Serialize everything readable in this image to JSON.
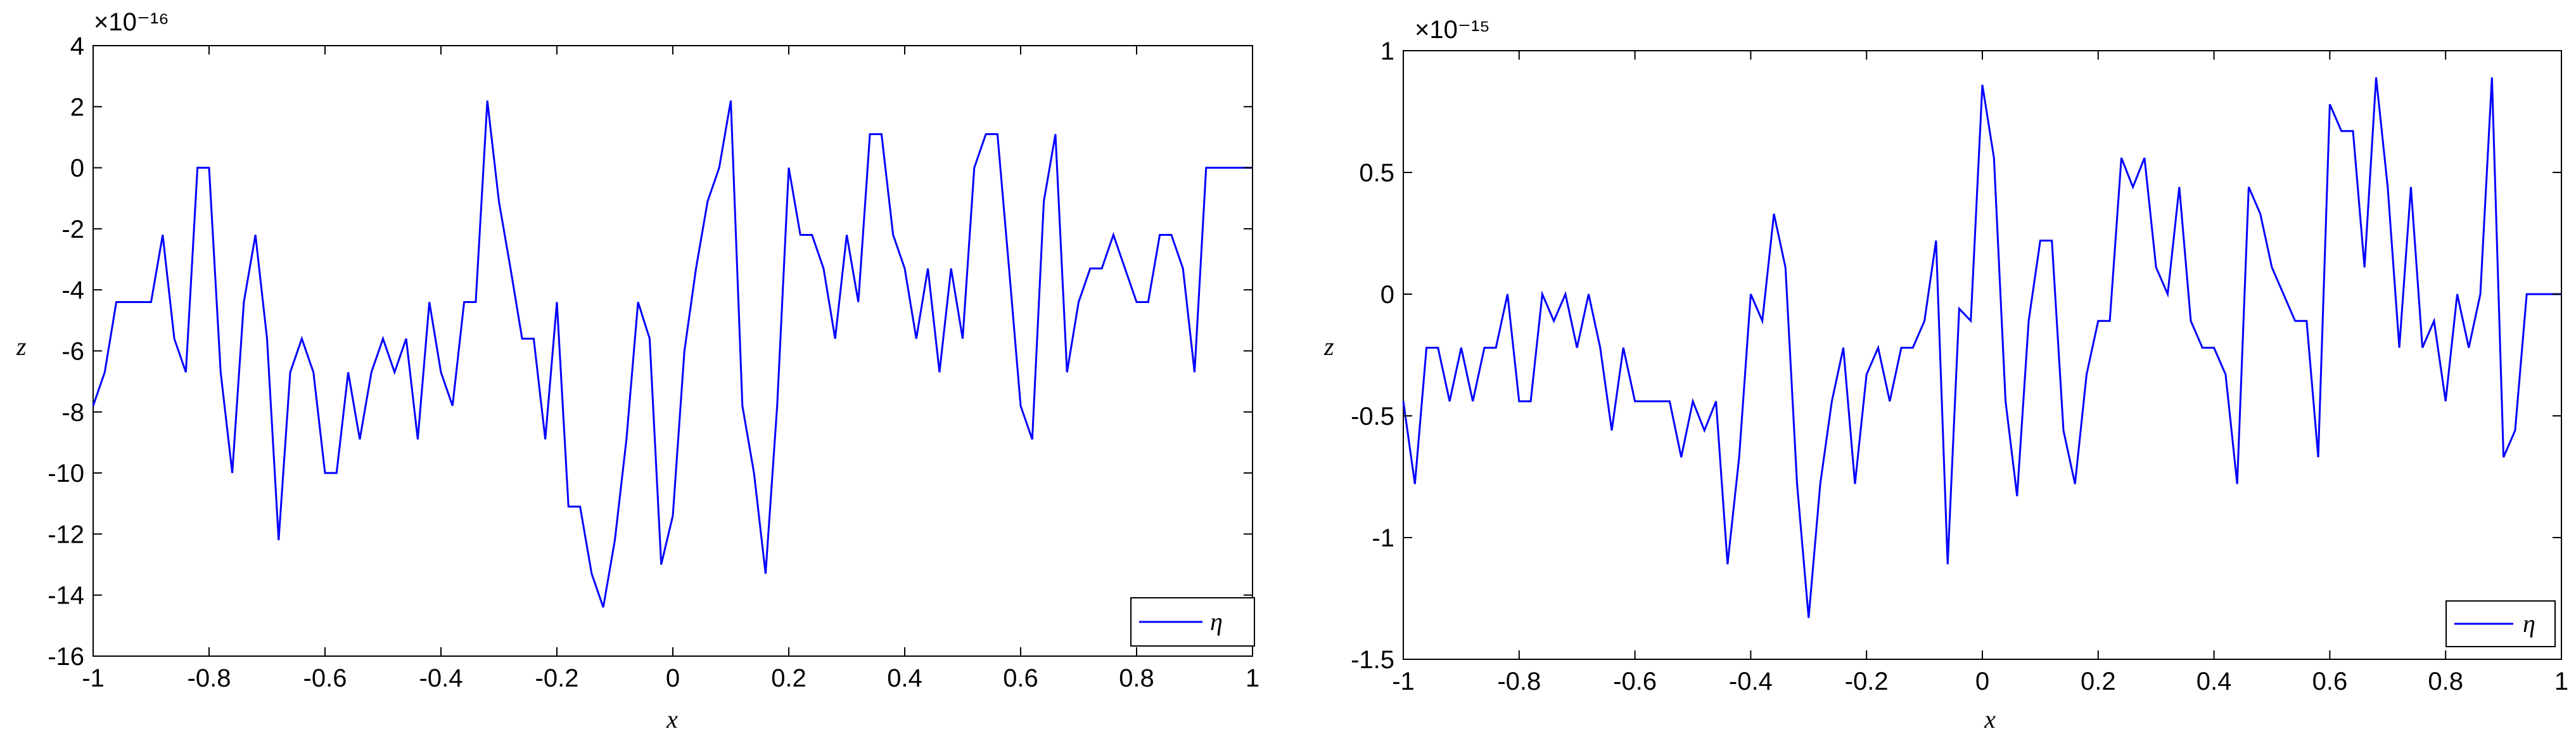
{
  "chart_data": [
    {
      "type": "line",
      "title": "",
      "xlabel": "x",
      "ylabel": "z",
      "xlim": [
        -1,
        1
      ],
      "ylim": [
        -16,
        4
      ],
      "y_multiplier_label": "×10⁻¹⁶",
      "y_scale_exponent": -16,
      "xticks": [
        -1,
        -0.8,
        -0.6,
        -0.4,
        -0.2,
        0,
        0.2,
        0.4,
        0.6,
        0.8,
        1
      ],
      "xtick_labels": [
        "-1",
        "-0.8",
        "-0.6",
        "-0.4",
        "-0.2",
        "0",
        "0.2",
        "0.4",
        "0.6",
        "0.8",
        "1"
      ],
      "yticks": [
        -16,
        -14,
        -12,
        -10,
        -8,
        -6,
        -4,
        -2,
        0,
        2,
        4
      ],
      "ytick_labels": [
        "-16",
        "-14",
        "-12",
        "-10",
        "-8",
        "-6",
        "-4",
        "-2",
        "0",
        "2",
        "4"
      ],
      "grid": false,
      "legend_position": "bottom-right",
      "line_color": "#0000ff",
      "series": [
        {
          "name": "η",
          "x": [
            -1,
            -0.98,
            -0.96,
            -0.94,
            -0.92,
            -0.9,
            -0.88,
            -0.86,
            -0.84,
            -0.82,
            -0.8,
            -0.78,
            -0.76,
            -0.74,
            -0.72,
            -0.7,
            -0.68,
            -0.66,
            -0.64,
            -0.62,
            -0.6,
            -0.58,
            -0.56,
            -0.54,
            -0.52,
            -0.5,
            -0.48,
            -0.46,
            -0.44,
            -0.42,
            -0.4,
            -0.38,
            -0.36,
            -0.34,
            -0.32,
            -0.3,
            -0.28,
            -0.26,
            -0.24,
            -0.22,
            -0.2,
            -0.18,
            -0.16,
            -0.14,
            -0.12,
            -0.1,
            -0.08,
            -0.06,
            -0.04,
            -0.02,
            0,
            0.02,
            0.04,
            0.06,
            0.08,
            0.1,
            0.12,
            0.14,
            0.16,
            0.18,
            0.2,
            0.22,
            0.24,
            0.26,
            0.28,
            0.3,
            0.32,
            0.34,
            0.36,
            0.38,
            0.4,
            0.42,
            0.44,
            0.46,
            0.48,
            0.5,
            0.52,
            0.54,
            0.56,
            0.58,
            0.6,
            0.62,
            0.64,
            0.66,
            0.68,
            0.7,
            0.72,
            0.74,
            0.76,
            0.78,
            0.8,
            0.82,
            0.84,
            0.86,
            0.88,
            0.9,
            0.92,
            0.94,
            0.96,
            0.98,
            1
          ],
          "y": [
            -7.8,
            -6.7,
            -4.4,
            -4.4,
            -4.4,
            -4.4,
            -2.2,
            -5.6,
            -6.7,
            0,
            0,
            -6.7,
            -10,
            -4.4,
            -2.2,
            -5.6,
            -12.2,
            -6.7,
            -5.6,
            -6.7,
            -10,
            -10,
            -6.7,
            -8.9,
            -6.7,
            -5.6,
            -6.7,
            -5.6,
            -8.9,
            -4.4,
            -6.7,
            -7.8,
            -4.4,
            -4.4,
            2.2,
            -1.1,
            -3.3,
            -5.6,
            -5.6,
            -8.9,
            -4.4,
            -11.1,
            -11.1,
            -13.3,
            -14.4,
            -12.2,
            -8.9,
            -4.4,
            -5.6,
            -13,
            -11.4,
            -6,
            -3.3,
            -1.1,
            0,
            2.2,
            -7.8,
            -10,
            -13.3,
            -7.8,
            0,
            -2.2,
            -2.2,
            -3.3,
            -5.6,
            -2.2,
            -4.4,
            1.1,
            1.1,
            -2.2,
            -3.3,
            -5.6,
            -3.3,
            -6.7,
            -3.3,
            -5.6,
            0,
            1.1,
            1.1,
            -3.3,
            -7.8,
            -8.9,
            -1.1,
            1.1,
            -6.7,
            -4.4,
            -3.3,
            -3.3,
            -2.2,
            -3.3,
            -4.4,
            -4.4,
            -2.2,
            -2.2,
            -3.3,
            -6.7,
            0,
            0,
            0,
            0,
            0
          ]
        }
      ]
    },
    {
      "type": "line",
      "title": "",
      "xlabel": "x",
      "ylabel": "z",
      "xlim": [
        -1,
        1
      ],
      "ylim": [
        -1.5,
        1
      ],
      "y_multiplier_label": "×10⁻¹⁵",
      "y_scale_exponent": -15,
      "xticks": [
        -1,
        -0.8,
        -0.6,
        -0.4,
        -0.2,
        0,
        0.2,
        0.4,
        0.6,
        0.8,
        1
      ],
      "xtick_labels": [
        "-1",
        "-0.8",
        "-0.6",
        "-0.4",
        "-0.2",
        "0",
        "0.2",
        "0.4",
        "0.6",
        "0.8",
        "1"
      ],
      "yticks": [
        -1.5,
        -1,
        -0.5,
        0,
        0.5,
        1
      ],
      "ytick_labels": [
        "-1.5",
        "-1",
        "-0.5",
        "0",
        "0.5",
        "1"
      ],
      "grid": false,
      "legend_position": "bottom-right",
      "line_color": "#0000ff",
      "series": [
        {
          "name": "η",
          "x": [
            -1,
            -0.98,
            -0.96,
            -0.94,
            -0.92,
            -0.9,
            -0.88,
            -0.86,
            -0.84,
            -0.82,
            -0.8,
            -0.78,
            -0.76,
            -0.74,
            -0.72,
            -0.7,
            -0.68,
            -0.66,
            -0.64,
            -0.62,
            -0.6,
            -0.58,
            -0.56,
            -0.54,
            -0.52,
            -0.5,
            -0.48,
            -0.46,
            -0.44,
            -0.42,
            -0.4,
            -0.38,
            -0.36,
            -0.34,
            -0.32,
            -0.3,
            -0.28,
            -0.26,
            -0.24,
            -0.22,
            -0.2,
            -0.18,
            -0.16,
            -0.14,
            -0.12,
            -0.1,
            -0.08,
            -0.06,
            -0.04,
            -0.02,
            0,
            0.02,
            0.04,
            0.06,
            0.08,
            0.1,
            0.12,
            0.14,
            0.16,
            0.18,
            0.2,
            0.22,
            0.24,
            0.26,
            0.28,
            0.3,
            0.32,
            0.34,
            0.36,
            0.38,
            0.4,
            0.42,
            0.44,
            0.46,
            0.48,
            0.5,
            0.52,
            0.54,
            0.56,
            0.58,
            0.6,
            0.62,
            0.64,
            0.66,
            0.68,
            0.7,
            0.72,
            0.74,
            0.76,
            0.78,
            0.8,
            0.82,
            0.84,
            0.86,
            0.88,
            0.9,
            0.92,
            0.94,
            0.96,
            0.98,
            1
          ],
          "y": [
            -0.44,
            -0.78,
            -0.22,
            -0.22,
            -0.44,
            -0.22,
            -0.44,
            -0.22,
            -0.22,
            0,
            -0.44,
            -0.44,
            0,
            -0.11,
            0,
            -0.22,
            0,
            -0.22,
            -0.56,
            -0.22,
            -0.44,
            -0.44,
            -0.44,
            -0.44,
            -0.67,
            -0.44,
            -0.56,
            -0.44,
            -1.11,
            -0.67,
            0,
            -0.11,
            0.33,
            0.11,
            -0.78,
            -1.33,
            -0.78,
            -0.44,
            -0.22,
            -0.78,
            -0.33,
            -0.22,
            -0.44,
            -0.22,
            -0.22,
            -0.11,
            0.22,
            -1.11,
            -0.06,
            -0.11,
            0.86,
            0.56,
            -0.44,
            -0.83,
            -0.11,
            0.22,
            0.22,
            -0.56,
            -0.78,
            -0.33,
            -0.11,
            -0.11,
            0.56,
            0.44,
            0.56,
            0.11,
            0,
            0.44,
            -0.11,
            -0.22,
            -0.22,
            -0.33,
            -0.78,
            0.44,
            0.33,
            0.11,
            0,
            -0.11,
            -0.11,
            -0.67,
            0.78,
            0.67,
            0.67,
            0.11,
            0.89,
            0.44,
            -0.22,
            0.44,
            -0.22,
            -0.11,
            -0.44,
            0,
            -0.22,
            0,
            0.89,
            -0.67,
            -0.56,
            0,
            0,
            0,
            0
          ]
        }
      ]
    }
  ]
}
